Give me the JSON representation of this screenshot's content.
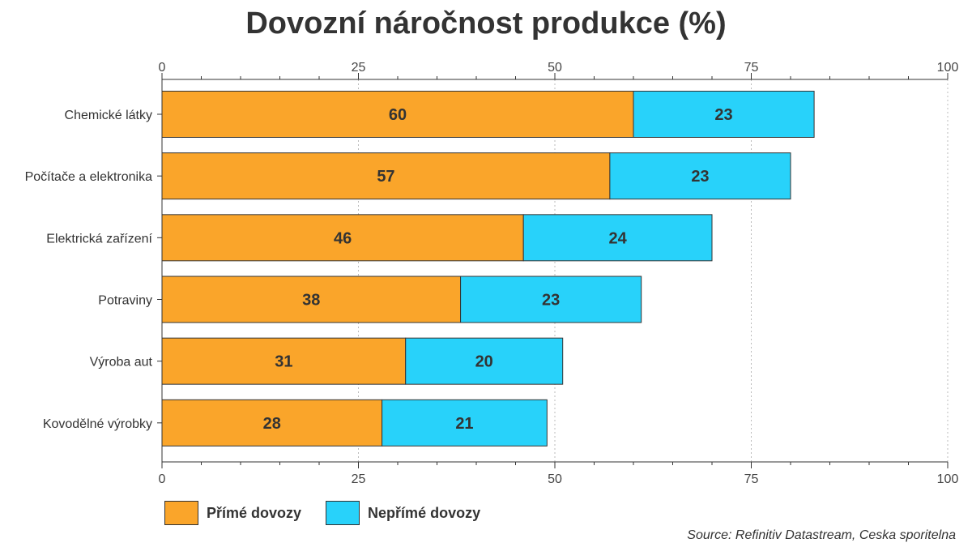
{
  "chart_data": {
    "type": "bar",
    "orientation": "horizontal",
    "stacked": true,
    "title": "Dovozní náročnost produkce (%)",
    "categories": [
      "Chemické látky",
      "Počítače a elektronika",
      "Elektrická zařízení",
      "Potraviny",
      "Výroba aut",
      "Kovodělné výrobky"
    ],
    "series": [
      {
        "name": "Přímé dovozy",
        "color": "#FAA52A",
        "values": [
          60,
          57,
          46,
          38,
          31,
          28
        ]
      },
      {
        "name": "Nepřímé dovozy",
        "color": "#28D2FA",
        "values": [
          23,
          23,
          24,
          23,
          20,
          21
        ]
      }
    ],
    "xlim": [
      0,
      100
    ],
    "xticks": [
      "0",
      "25",
      "50",
      "75",
      "100"
    ],
    "xlabel": "",
    "ylabel": "",
    "legend_position": "bottom-left",
    "source": "Source: Refinitiv Datastream, Ceska sporitelna"
  }
}
